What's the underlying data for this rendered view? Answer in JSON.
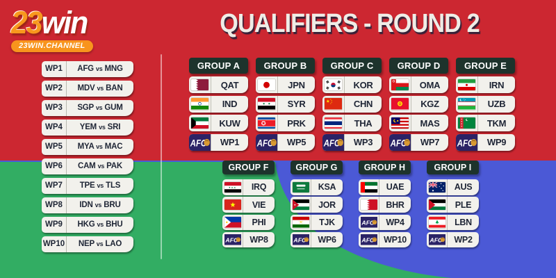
{
  "brand": {
    "logo_23": "23",
    "logo_win": "win",
    "channel": "23WIN.CHANNEL"
  },
  "title": "QUALIFIERS - ROUND 2",
  "vs_label": "vs",
  "afc_label": "AFC",
  "playoffs": [
    {
      "wp": "WP1",
      "home": "AFG",
      "away": "MNG"
    },
    {
      "wp": "WP2",
      "home": "MDV",
      "away": "BAN"
    },
    {
      "wp": "WP3",
      "home": "SGP",
      "away": "GUM"
    },
    {
      "wp": "WP4",
      "home": "YEM",
      "away": "SRI"
    },
    {
      "wp": "WP5",
      "home": "MYA",
      "away": "MAC"
    },
    {
      "wp": "WP6",
      "home": "CAM",
      "away": "PAK"
    },
    {
      "wp": "WP7",
      "home": "TPE",
      "away": "TLS"
    },
    {
      "wp": "WP8",
      "home": "IDN",
      "away": "BRU"
    },
    {
      "wp": "WP9",
      "home": "HKG",
      "away": "BHU"
    },
    {
      "wp": "WP10",
      "home": "NEP",
      "away": "LAO"
    }
  ],
  "groups_top": [
    {
      "name": "GROUP A",
      "teams": [
        {
          "code": "QAT",
          "flag": "qat"
        },
        {
          "code": "IND",
          "flag": "ind"
        },
        {
          "code": "KUW",
          "flag": "kuw"
        },
        {
          "code": "WP1",
          "flag": "afc"
        }
      ]
    },
    {
      "name": "GROUP B",
      "teams": [
        {
          "code": "JPN",
          "flag": "jpn"
        },
        {
          "code": "SYR",
          "flag": "syr"
        },
        {
          "code": "PRK",
          "flag": "prk"
        },
        {
          "code": "WP5",
          "flag": "afc"
        }
      ]
    },
    {
      "name": "GROUP C",
      "teams": [
        {
          "code": "KOR",
          "flag": "kor"
        },
        {
          "code": "CHN",
          "flag": "chn"
        },
        {
          "code": "THA",
          "flag": "tha"
        },
        {
          "code": "WP3",
          "flag": "afc"
        }
      ]
    },
    {
      "name": "GROUP D",
      "teams": [
        {
          "code": "OMA",
          "flag": "oma"
        },
        {
          "code": "KGZ",
          "flag": "kgz"
        },
        {
          "code": "MAS",
          "flag": "mas"
        },
        {
          "code": "WP7",
          "flag": "afc"
        }
      ]
    },
    {
      "name": "GROUP E",
      "teams": [
        {
          "code": "IRN",
          "flag": "irn"
        },
        {
          "code": "UZB",
          "flag": "uzb"
        },
        {
          "code": "TKM",
          "flag": "tkm"
        },
        {
          "code": "WP9",
          "flag": "afc"
        }
      ]
    }
  ],
  "groups_bottom": [
    {
      "name": "GROUP F",
      "teams": [
        {
          "code": "IRQ",
          "flag": "irq"
        },
        {
          "code": "VIE",
          "flag": "vie"
        },
        {
          "code": "PHI",
          "flag": "phi"
        },
        {
          "code": "WP8",
          "flag": "afc"
        }
      ]
    },
    {
      "name": "GROUP G",
      "teams": [
        {
          "code": "KSA",
          "flag": "ksa"
        },
        {
          "code": "JOR",
          "flag": "jor"
        },
        {
          "code": "TJK",
          "flag": "tjk"
        },
        {
          "code": "WP6",
          "flag": "afc"
        }
      ]
    },
    {
      "name": "GROUP H",
      "teams": [
        {
          "code": "UAE",
          "flag": "uae"
        },
        {
          "code": "BHR",
          "flag": "bhr"
        },
        {
          "code": "WP4",
          "flag": "afc"
        },
        {
          "code": "WP10",
          "flag": "afc"
        }
      ]
    },
    {
      "name": "GROUP I",
      "teams": [
        {
          "code": "AUS",
          "flag": "aus"
        },
        {
          "code": "PLE",
          "flag": "ple"
        },
        {
          "code": "LBN",
          "flag": "lbn"
        },
        {
          "code": "WP2",
          "flag": "afc"
        }
      ]
    }
  ],
  "colors": {
    "background_red": "#cc2731",
    "background_green": "#32ad63",
    "background_blue": "#4b59d6",
    "card_white": "#f2f1ec",
    "group_header_dark": "#1d332c",
    "text_navy": "#1e2535",
    "afc_purple": "#2b2366",
    "afc_gold": "#d89a33",
    "brand_orange": "#f8941d"
  }
}
